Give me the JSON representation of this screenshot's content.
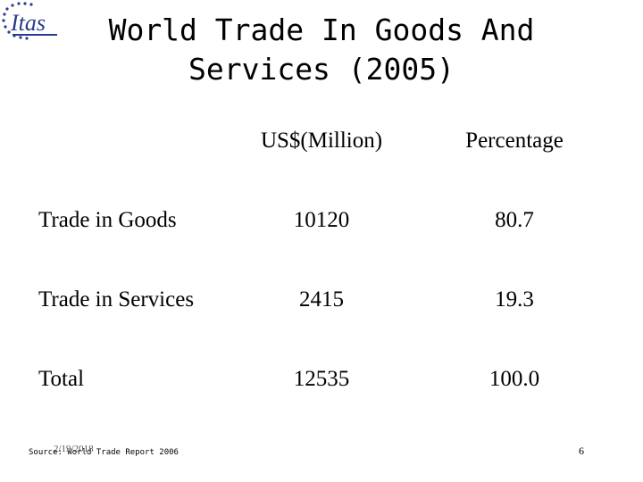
{
  "slide": {
    "title": "World Trade In Goods And\nServices (2005)"
  },
  "table": {
    "headers": [
      "US$(Million)",
      "Percentage"
    ],
    "rows": [
      {
        "label": "Trade in Goods",
        "usd": "10120",
        "pct": "80.7"
      },
      {
        "label": "Trade in Services",
        "usd": "2415",
        "pct": "19.3"
      },
      {
        "label": "Total",
        "usd": "12535",
        "pct": "100.0"
      }
    ]
  },
  "footer": {
    "source": "Source: World Trade Report 2006",
    "date": "2/19/2018",
    "page": "6"
  },
  "logo": {
    "text": "Itas",
    "accent_color": "#2a3a8c"
  }
}
